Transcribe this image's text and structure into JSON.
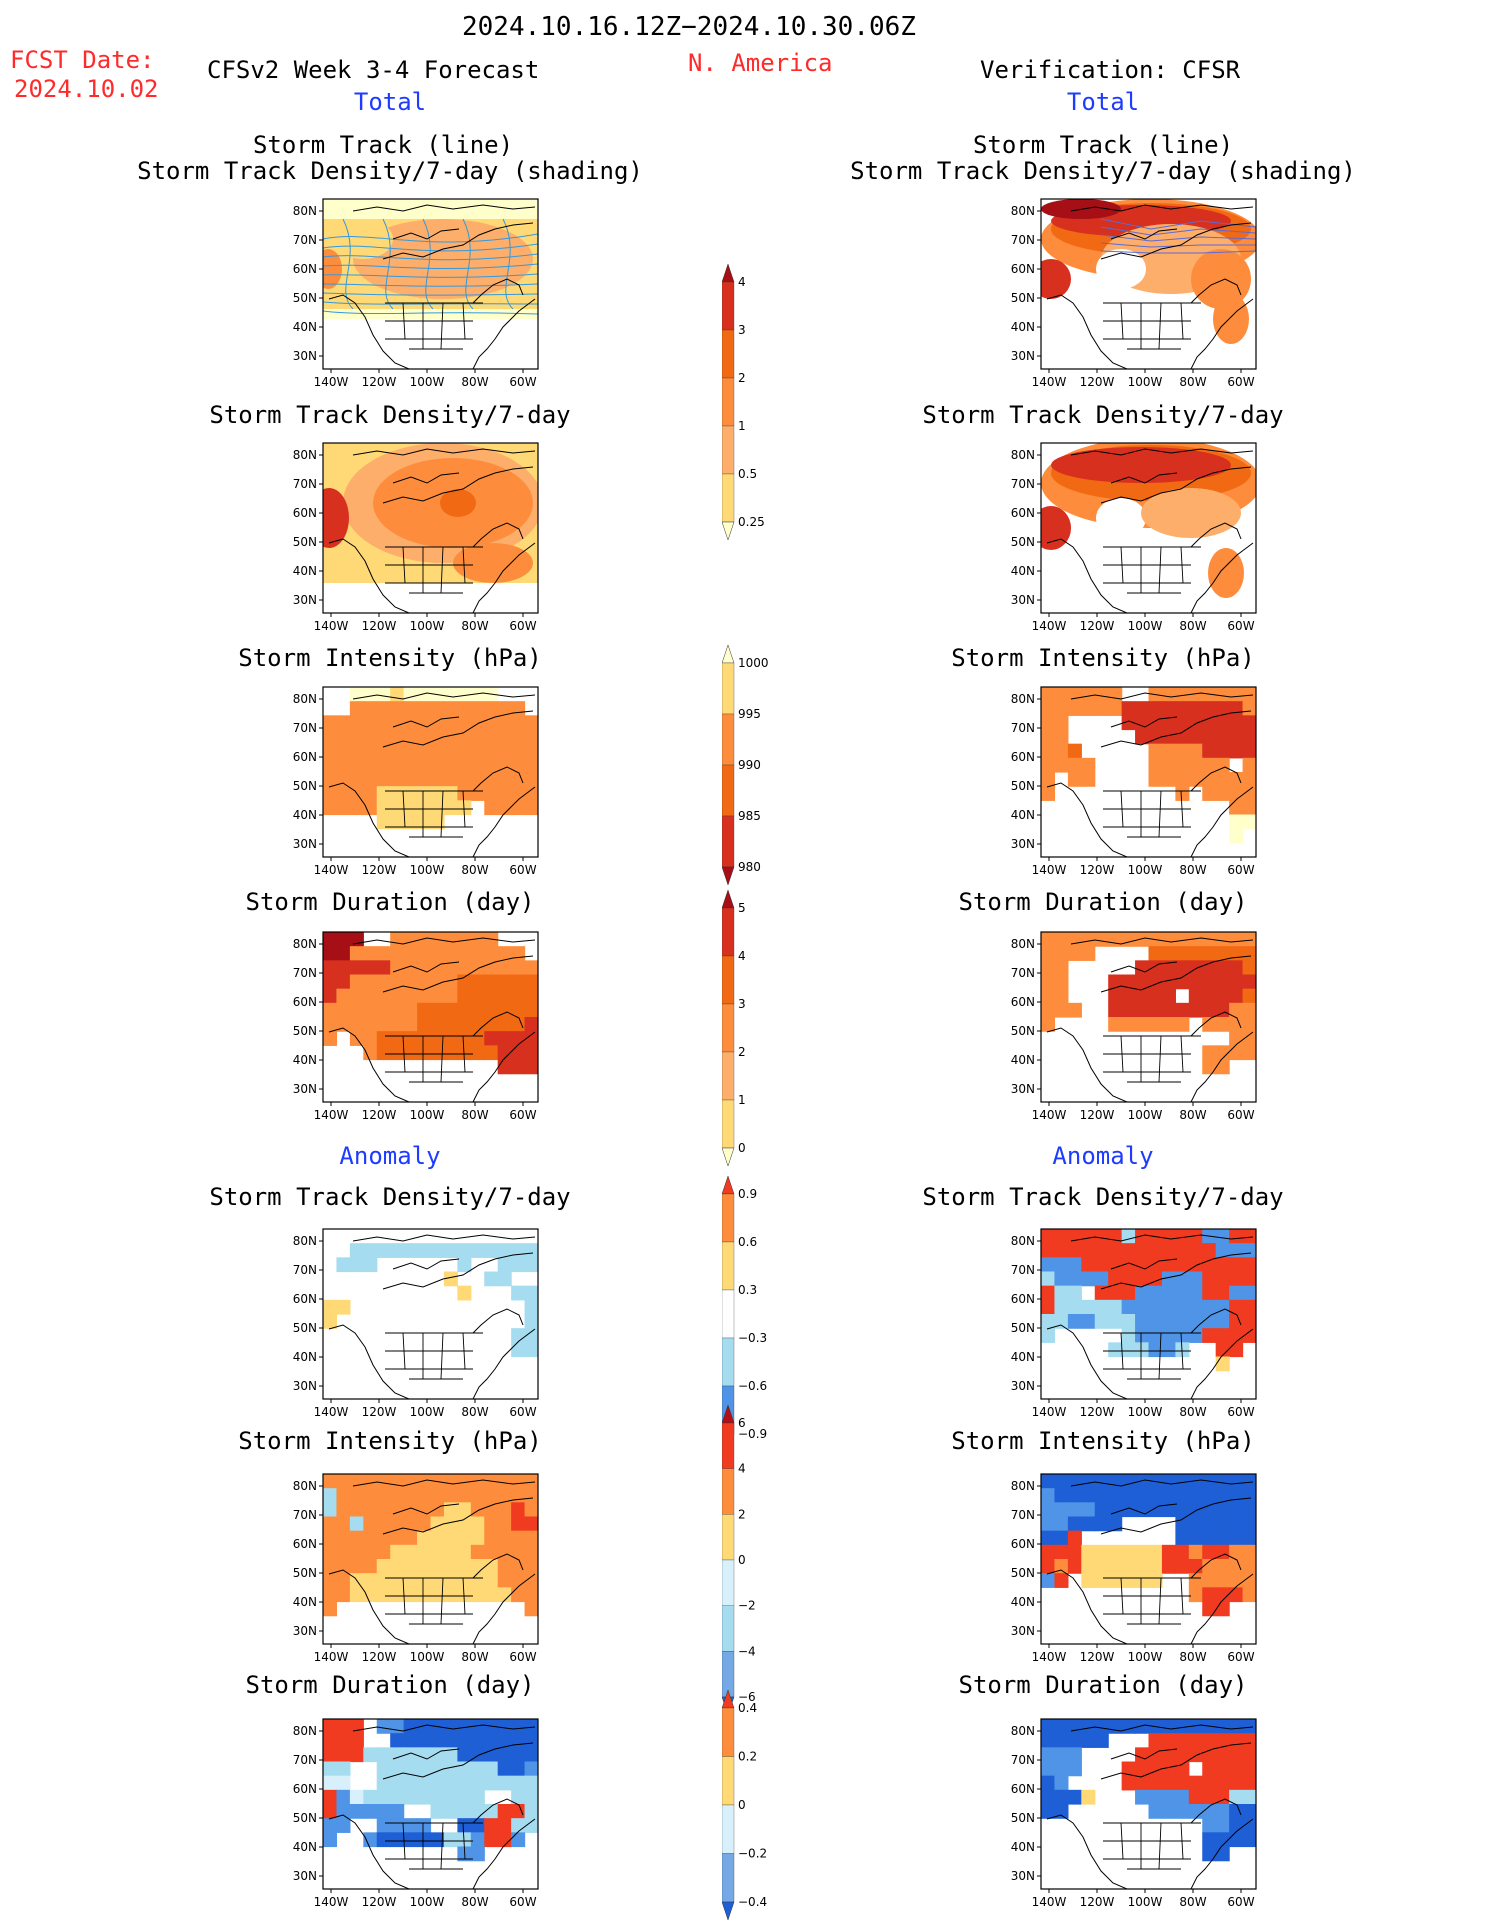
{
  "header": {
    "period": "2024.10.16.12Z−2024.10.30.06Z",
    "region": "N. America",
    "fcst_label": "FCST Date:",
    "fcst_date": "2024.10.02",
    "left_title": "CFSv2 Week 3-4 Forecast",
    "right_title": "Verification: CFSR"
  },
  "sections": {
    "total": "Total",
    "anomaly": "Anomaly"
  },
  "panel_titles": {
    "st_line": "Storm Track (line)",
    "st_shading": "Storm Track Density/7-day (shading)",
    "density": "Storm Track Density/7-day",
    "intensity": "Storm Intensity (hPa)",
    "duration": "Storm Duration (day)"
  },
  "axes": {
    "lat_ticks": [
      "80N",
      "70N",
      "60N",
      "50N",
      "40N",
      "30N"
    ],
    "lon_ticks": [
      "140W",
      "120W",
      "100W",
      "80W",
      "60W"
    ]
  },
  "colorbars": {
    "density_total": {
      "labels": [
        "4",
        "3",
        "2",
        "1",
        "0.5",
        "0.25"
      ],
      "colors": [
        "#a50f15",
        "#d7301f",
        "#f16913",
        "#fd8d3c",
        "#fdae6b",
        "#fed976",
        "#ffffcc"
      ]
    },
    "intensity_total": {
      "labels": [
        "1000",
        "995",
        "990",
        "985",
        "980"
      ],
      "colors": [
        "#ffffcc",
        "#fed976",
        "#fd8d3c",
        "#f16913",
        "#d7301f",
        "#a50f15"
      ]
    },
    "duration_total": {
      "labels": [
        "5",
        "4",
        "3",
        "2",
        "1",
        "0"
      ],
      "colors": [
        "#a50f15",
        "#d7301f",
        "#f16913",
        "#fd8d3c",
        "#fdae6b",
        "#fed976",
        "#ffffcc"
      ]
    },
    "density_anom": {
      "labels": [
        "0.9",
        "0.6",
        "0.3",
        "−0.3",
        "−0.6",
        "−0.9"
      ],
      "colors": [
        "#f03b20",
        "#fd8d3c",
        "#fed976",
        "#ffffff",
        "#a6dcf0",
        "#4f94e6",
        "#1f5fd6"
      ]
    },
    "intensity_anom": {
      "labels": [
        "6",
        "4",
        "2",
        "0",
        "−2",
        "−4",
        "−6"
      ],
      "colors": [
        "#b50f15",
        "#f03b20",
        "#fd8d3c",
        "#fed976",
        "#d8f0fb",
        "#a6dcf0",
        "#74a9e6",
        "#1f5fd6"
      ]
    },
    "duration_anom": {
      "labels": [
        "0.4",
        "0.2",
        "0",
        "−0.2",
        "−0.4"
      ],
      "colors": [
        "#f03b20",
        "#fd8d3c",
        "#fed976",
        "#d8f0fb",
        "#74a9e6",
        "#1f5fd6"
      ]
    }
  },
  "colors": {
    "red_text": "#ff2a2a",
    "blue_text": "#1e3cff",
    "line_blue": "#3399dd"
  }
}
